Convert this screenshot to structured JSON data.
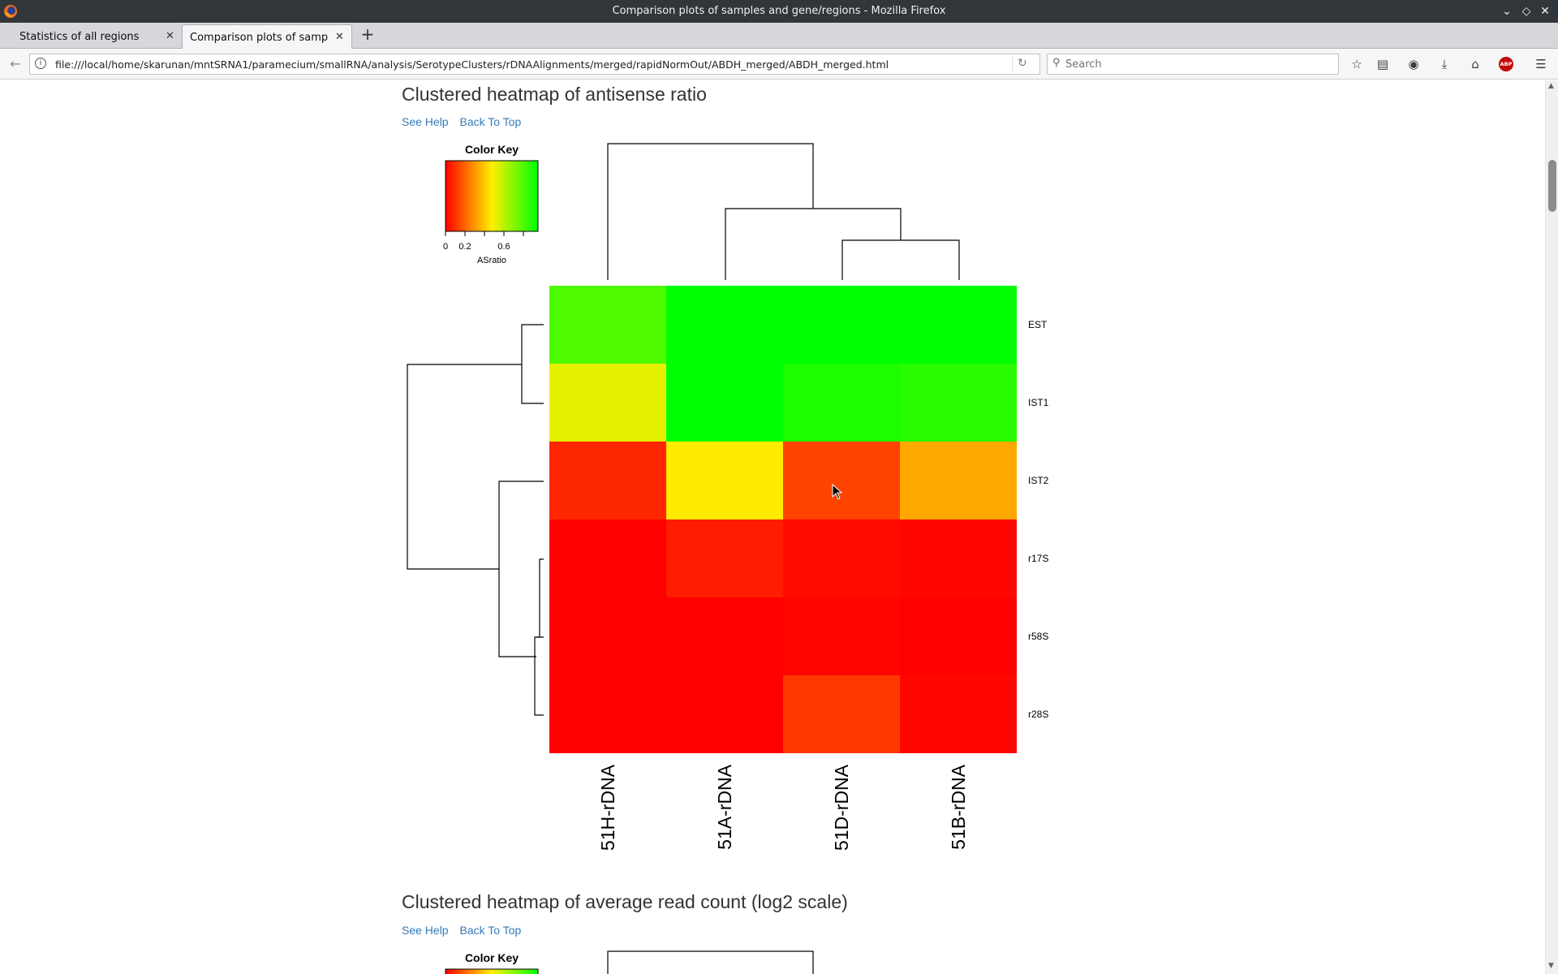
{
  "window": {
    "title": "Comparison plots of samples and gene/regions - Mozilla Firefox"
  },
  "tabs": [
    {
      "label": "Statistics of all regions"
    },
    {
      "label": "Comparison plots of sampl..."
    }
  ],
  "navbar": {
    "url": "file:///local/home/skarunan/mntSRNA1/paramecium/smallRNA/analysis/SerotypeClusters/rDNAAlignments/merged/rapidNormOut/ABDH_merged/ABDH_merged.html",
    "search_placeholder": "Search",
    "abp_label": "ABP"
  },
  "page": {
    "section1": {
      "title": "Clustered heatmap of antisense ratio",
      "help_link": "See Help",
      "top_link": "Back To Top"
    },
    "section2": {
      "title": "Clustered heatmap of average read count (log2 scale)",
      "help_link": "See Help",
      "top_link": "Back To Top",
      "color_key_title": "Color Key"
    }
  },
  "chart_data": {
    "type": "heatmap",
    "title": "",
    "columns": [
      "51H-rDNA",
      "51A-rDNA",
      "51D-rDNA",
      "51B-rDNA"
    ],
    "rows": [
      "EST",
      "IST1",
      "IST2",
      "r17S",
      "r58S",
      "r28S"
    ],
    "values": [
      [
        0.72,
        0.97,
        0.9,
        0.93
      ],
      [
        0.47,
        0.97,
        0.8,
        0.78
      ],
      [
        0.07,
        0.42,
        0.12,
        0.3
      ],
      [
        0.0,
        0.05,
        0.02,
        0.01
      ],
      [
        0.0,
        0.0,
        0.01,
        0.0
      ],
      [
        0.0,
        0.0,
        0.1,
        0.01
      ]
    ],
    "color_key": {
      "title": "Color Key",
      "label": "ASratio",
      "ticks": [
        "0",
        "0.2",
        "0.6"
      ],
      "range": [
        0,
        0.85
      ],
      "colors": [
        "#ff0000",
        "#ffee00",
        "#00ff00"
      ]
    },
    "column_dendrogram": "((51H-rDNA),(51A-rDNA,(51D-rDNA,51B-rDNA)))",
    "row_dendrogram": "((EST,IST1),(IST2,(r17S,(r58S,r28S))))"
  }
}
